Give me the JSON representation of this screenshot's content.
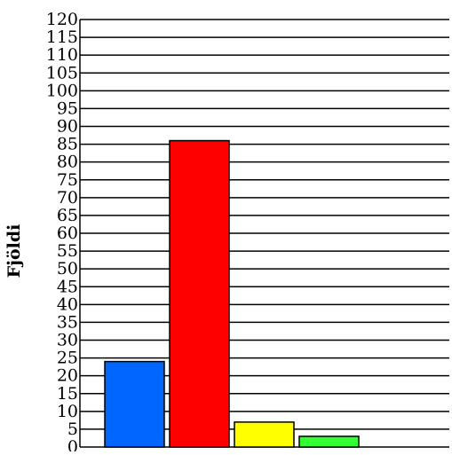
{
  "chart_data": {
    "type": "bar",
    "title": "",
    "xlabel": "",
    "ylabel": "Fjöldi",
    "ylim": [
      0,
      120
    ],
    "ytick_step": 5,
    "yticks": [
      "0",
      "5",
      "10",
      "15",
      "20",
      "25",
      "30",
      "35",
      "40",
      "45",
      "50",
      "55",
      "60",
      "65",
      "70",
      "75",
      "80",
      "85",
      "90",
      "95",
      "100",
      "105",
      "110",
      "115",
      "120"
    ],
    "grid": true,
    "legend": "none",
    "categories": [
      "",
      "",
      "",
      ""
    ],
    "values": [
      24,
      86,
      7,
      3
    ],
    "colors": [
      "#0066ff",
      "#ff0000",
      "#ffff00",
      "#33ff33"
    ]
  }
}
